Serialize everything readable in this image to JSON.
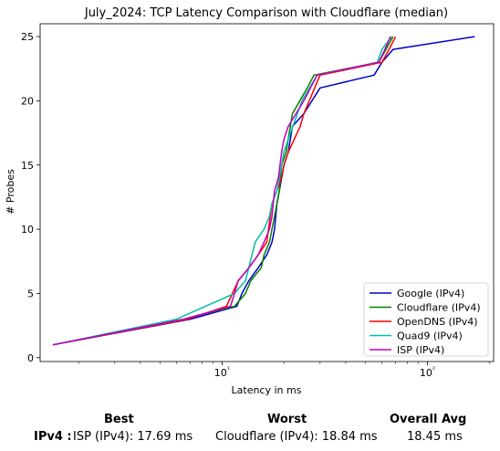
{
  "chart_data": {
    "type": "line",
    "title": "July_2024: TCP Latency Comparison with Cloudflare (median)",
    "xlabel": "Latency in ms",
    "ylabel": "# Probes",
    "xscale": "log",
    "xlim": [
      1.3,
      210
    ],
    "ylim": [
      -0.3,
      26
    ],
    "x_ticks": [
      10,
      100
    ],
    "x_tick_labels": [
      "10¹",
      "10²"
    ],
    "y_ticks": [
      0,
      5,
      10,
      15,
      20,
      25
    ],
    "legend_position": "lower-right",
    "series": [
      {
        "name": "Google (IPv4)",
        "color": "#0000cc",
        "x": [
          1.5,
          7.0,
          11.8,
          12.5,
          13.5,
          15.0,
          16.5,
          17.5,
          18.0,
          18.5,
          19.0,
          19.5,
          20.0,
          21.0,
          22.0,
          25.0,
          30.0,
          55.0,
          60.0,
          68.0,
          170.0
        ],
        "y": [
          1,
          3,
          4,
          5,
          6,
          7,
          8,
          9,
          10,
          12,
          13,
          14,
          15,
          16,
          18,
          19,
          21,
          22,
          23,
          24,
          25
        ]
      },
      {
        "name": "Cloudflare (IPv4)",
        "color": "#008000",
        "x": [
          1.5,
          6.5,
          11.5,
          13.0,
          13.8,
          15.5,
          16.0,
          17.0,
          18.0,
          19.0,
          19.5,
          20.5,
          21.5,
          22.0,
          26.0,
          28.0,
          58.0,
          68.0
        ],
        "y": [
          1,
          3,
          4,
          5,
          6,
          7,
          8,
          9,
          11,
          13,
          15,
          16,
          18,
          19,
          21,
          22,
          23,
          25
        ]
      },
      {
        "name": "OpenDNS (IPv4)",
        "color": "#ff0000",
        "x": [
          1.5,
          6.8,
          10.5,
          12.0,
          13.5,
          15.0,
          16.5,
          17.5,
          18.5,
          19.5,
          20.0,
          21.0,
          24.0,
          25.0,
          30.0,
          60.0,
          65.0,
          70.0
        ],
        "y": [
          1,
          3,
          4,
          6,
          7,
          8,
          9,
          12,
          13,
          14,
          15,
          16,
          18,
          19,
          22,
          23,
          24,
          25
        ]
      },
      {
        "name": "Quad9 (IPv4)",
        "color": "#00bfa5",
        "x": [
          1.5,
          6.0,
          11.5,
          13.0,
          14.5,
          16.0,
          17.0,
          17.5,
          18.5,
          19.0,
          19.5,
          20.0,
          21.0,
          24.5,
          29.0,
          57.0,
          60.0,
          67.0
        ],
        "y": [
          1,
          3,
          5,
          6,
          9,
          10,
          11,
          12,
          13,
          14,
          15,
          16,
          17,
          20,
          22,
          23,
          24,
          25
        ]
      },
      {
        "name": "ISP (IPv4)",
        "color": "#bf00bf",
        "x": [
          1.5,
          6.5,
          11.0,
          12.0,
          13.5,
          15.0,
          16.0,
          17.0,
          17.5,
          18.0,
          18.8,
          19.5,
          20.0,
          21.0,
          25.0,
          29.0,
          58.0,
          62.0,
          66.0
        ],
        "y": [
          1,
          3,
          4,
          6,
          7,
          8,
          9,
          10,
          11,
          13,
          14,
          16,
          17,
          18,
          20,
          22,
          23,
          24,
          25
        ]
      }
    ]
  },
  "summary": {
    "row_label": "IPv4 :",
    "best_header": "Best",
    "worst_header": "Worst",
    "avg_header": "Overall Avg",
    "best_value": "ISP (IPv4): 17.69 ms",
    "worst_value": "Cloudflare (IPv4): 18.84 ms",
    "avg_value": "18.45 ms"
  }
}
